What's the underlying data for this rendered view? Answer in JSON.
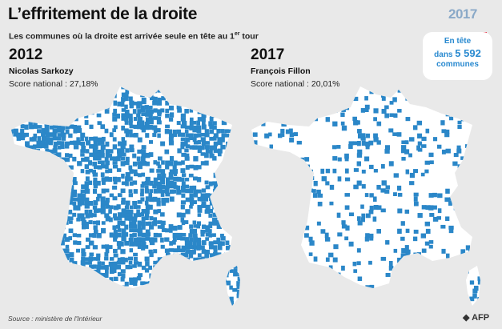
{
  "header": {
    "title": "L’effritement de la droite",
    "subtitle": "Les communes où la droite est arrivée seule en tête au 1",
    "subtitle_sup": "er",
    "subtitle_end": " tour"
  },
  "logo": {
    "text": "2017",
    "colors": [
      "#2c4b9b",
      "#ffffff",
      "#e4293a"
    ]
  },
  "badge": {
    "line1": "En tête",
    "line2_prefix": "dans ",
    "line2_value": "5 592",
    "line3": "communes"
  },
  "maps": [
    {
      "year": "2012",
      "candidate": "Nicolas Sarkozy",
      "score": "Score national : 27,18%",
      "density": 0.62
    },
    {
      "year": "2017",
      "candidate": "François Fillon",
      "score": "Score national : 20,01%",
      "density": 0.16
    }
  ],
  "colors": {
    "communes": "#2b87c8",
    "land": "#ffffff",
    "background": "#e9e9e9"
  },
  "footer": {
    "source": "Source : ministère de l'Intérieur",
    "credit": "AFP"
  }
}
